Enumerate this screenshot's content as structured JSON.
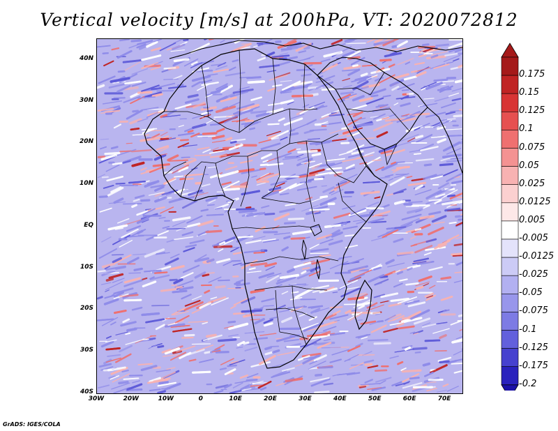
{
  "title": "Vertical velocity [m/s] at 200hPa, VT: 2020072812",
  "credit": "GrADS: IGES/COLA",
  "map": {
    "lat_labels": [
      "40N",
      "30N",
      "20N",
      "10N",
      "EQ",
      "10S",
      "20S",
      "30S",
      "40S"
    ],
    "lon_labels": [
      "30W",
      "20W",
      "10W",
      "0",
      "10E",
      "20E",
      "30E",
      "40E",
      "50E",
      "60E",
      "70E"
    ],
    "lat_range": [
      -40,
      45
    ],
    "lon_range": [
      -30,
      75
    ]
  },
  "colorbar": {
    "levels": [
      {
        "label": "0.175",
        "color": "#a51a1a"
      },
      {
        "label": "0.15",
        "color": "#c02424"
      },
      {
        "label": "0.125",
        "color": "#d83434"
      },
      {
        "label": "0.1",
        "color": "#e65050"
      },
      {
        "label": "0.075",
        "color": "#ef7070"
      },
      {
        "label": "0.05",
        "color": "#f49292"
      },
      {
        "label": "0.025",
        "color": "#f8b2b2"
      },
      {
        "label": "0.0125",
        "color": "#fbd0d0"
      },
      {
        "label": "0.005",
        "color": "#fde8e8"
      },
      {
        "label": "-0.005",
        "color": "#ffffff"
      },
      {
        "label": "-0.0125",
        "color": "#e4e3fb"
      },
      {
        "label": "-0.025",
        "color": "#cccbf6"
      },
      {
        "label": "-0.05",
        "color": "#b2b0f1"
      },
      {
        "label": "-0.075",
        "color": "#9896eb"
      },
      {
        "label": "-0.1",
        "color": "#7d7be4"
      },
      {
        "label": "-0.125",
        "color": "#6260dc"
      },
      {
        "label": "-0.175",
        "color": "#4641cf"
      },
      {
        "label": "-0.2",
        "color": "#2a22bd"
      }
    ],
    "top_color": "#a51a1a",
    "bottom_color": "#1c12a8"
  },
  "field_colors": {
    "background": "#b9b5ef",
    "positive": "#ef7070",
    "positive_light": "#f8b2b2",
    "positive_strong": "#c02424",
    "negative": "#8f8ce9",
    "negative_strong": "#5d5ad9",
    "near_zero": "#ffffff"
  }
}
